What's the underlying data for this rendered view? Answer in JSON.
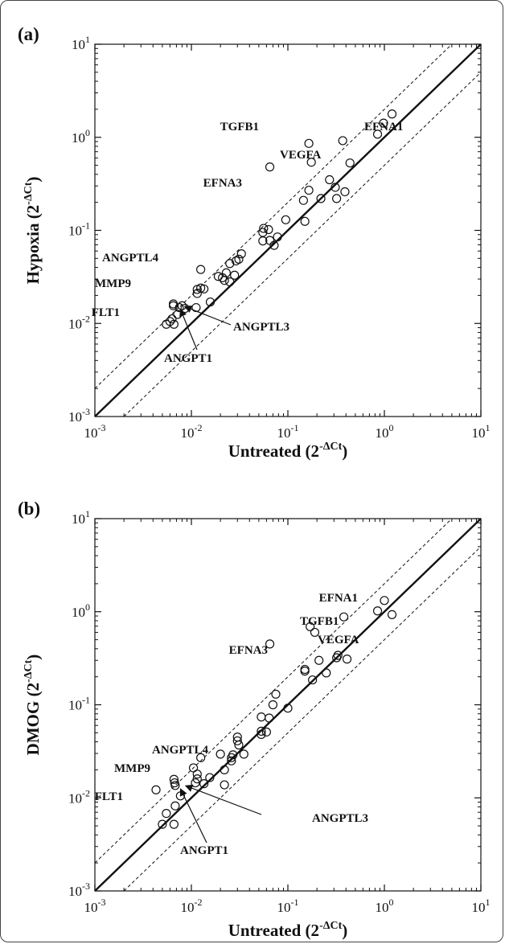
{
  "chart_data": [
    {
      "type": "scatter",
      "panel_label": "(a)",
      "xlabel": "Untreated (2",
      "xlabel_sup": "-ΔCt",
      "ylabel": "Hypoxia (2",
      "ylabel_sup": "-ΔCt",
      "xscale": "log",
      "yscale": "log",
      "xlim": [
        0.001,
        10
      ],
      "ylim": [
        0.001,
        10
      ],
      "tick_labels": [
        {
          "base": "10",
          "exp": "-3"
        },
        {
          "base": "10",
          "exp": "-2"
        },
        {
          "base": "10",
          "exp": "-1"
        },
        {
          "base": "10",
          "exp": "0"
        },
        {
          "base": "10",
          "exp": "1"
        }
      ],
      "reference_lines": {
        "identity": 1,
        "fold_bounds": [
          2,
          0.5
        ]
      },
      "points": [
        [
          0.0055,
          0.0098
        ],
        [
          0.006,
          0.0105
        ],
        [
          0.0066,
          0.0098
        ],
        [
          0.0063,
          0.0112
        ],
        [
          0.0065,
          0.0155
        ],
        [
          0.0072,
          0.0125
        ],
        [
          0.0075,
          0.0148
        ],
        [
          0.008,
          0.0155
        ],
        [
          0.0086,
          0.0145
        ],
        [
          0.0065,
          0.0162
        ],
        [
          0.0112,
          0.0148
        ],
        [
          0.0115,
          0.021
        ],
        [
          0.0125,
          0.024
        ],
        [
          0.0135,
          0.0235
        ],
        [
          0.0157,
          0.017
        ],
        [
          0.0115,
          0.0232
        ],
        [
          0.0125,
          0.038
        ],
        [
          0.019,
          0.032
        ],
        [
          0.021,
          0.031
        ],
        [
          0.023,
          0.035
        ],
        [
          0.025,
          0.028
        ],
        [
          0.025,
          0.044
        ],
        [
          0.028,
          0.033
        ],
        [
          0.029,
          0.047
        ],
        [
          0.031,
          0.049
        ],
        [
          0.033,
          0.056
        ],
        [
          0.022,
          0.029
        ],
        [
          0.055,
          0.077
        ],
        [
          0.055,
          0.095
        ],
        [
          0.056,
          0.105
        ],
        [
          0.063,
          0.102
        ],
        [
          0.065,
          0.078
        ],
        [
          0.072,
          0.069
        ],
        [
          0.078,
          0.085
        ],
        [
          0.095,
          0.13
        ],
        [
          0.145,
          0.21
        ],
        [
          0.15,
          0.125
        ],
        [
          0.165,
          0.27
        ],
        [
          0.22,
          0.22
        ],
        [
          0.27,
          0.35
        ],
        [
          0.31,
          0.29
        ],
        [
          0.32,
          0.22
        ],
        [
          0.39,
          0.26
        ],
        [
          0.44,
          0.53
        ],
        [
          0.85,
          1.08
        ],
        [
          0.98,
          1.42
        ],
        [
          1.2,
          1.78
        ],
        [
          0.37,
          0.92
        ],
        [
          0.165,
          0.86
        ],
        [
          0.175,
          0.54
        ],
        [
          0.065,
          0.48
        ]
      ],
      "annotations": [
        {
          "text": "TGFB1"
        },
        {
          "text": "EFNA1"
        },
        {
          "text": "VEGFA"
        },
        {
          "text": "EFNA3"
        },
        {
          "text": "ANGPTL4"
        },
        {
          "text": "MMP9"
        },
        {
          "text": "FLT1"
        },
        {
          "text": "ANGPTL3",
          "arrow_to": [
            0.0085,
            0.0152
          ]
        },
        {
          "text": "ANGPT1",
          "arrow_to": [
            0.0077,
            0.0142
          ]
        }
      ]
    },
    {
      "type": "scatter",
      "panel_label": "(b)",
      "xlabel": "Untreated (2",
      "xlabel_sup": "-ΔCt",
      "ylabel": "DMOG (2",
      "ylabel_sup": "-ΔCt",
      "xscale": "log",
      "yscale": "log",
      "xlim": [
        0.001,
        10
      ],
      "ylim": [
        0.001,
        10
      ],
      "tick_labels": [
        {
          "base": "10",
          "exp": "-3"
        },
        {
          "base": "10",
          "exp": "-2"
        },
        {
          "base": "10",
          "exp": "-1"
        },
        {
          "base": "10",
          "exp": "0"
        },
        {
          "base": "10",
          "exp": "1"
        }
      ],
      "reference_lines": {
        "identity": 1,
        "fold_bounds": [
          2,
          0.5
        ]
      },
      "points": [
        [
          0.0043,
          0.0122
        ],
        [
          0.005,
          0.0052
        ],
        [
          0.0055,
          0.0068
        ],
        [
          0.0066,
          0.0052
        ],
        [
          0.0068,
          0.0082
        ],
        [
          0.0066,
          0.0158
        ],
        [
          0.0067,
          0.0145
        ],
        [
          0.0068,
          0.0136
        ],
        [
          0.0077,
          0.0105
        ],
        [
          0.0105,
          0.021
        ],
        [
          0.011,
          0.0145
        ],
        [
          0.0115,
          0.016
        ],
        [
          0.0115,
          0.018
        ],
        [
          0.0125,
          0.027
        ],
        [
          0.0135,
          0.0142
        ],
        [
          0.0155,
          0.0165
        ],
        [
          0.02,
          0.0295
        ],
        [
          0.022,
          0.02
        ],
        [
          0.022,
          0.0138
        ],
        [
          0.026,
          0.027
        ],
        [
          0.026,
          0.025
        ],
        [
          0.027,
          0.029
        ],
        [
          0.03,
          0.041
        ],
        [
          0.03,
          0.045
        ],
        [
          0.031,
          0.037
        ],
        [
          0.035,
          0.0295
        ],
        [
          0.053,
          0.048
        ],
        [
          0.053,
          0.052
        ],
        [
          0.053,
          0.074
        ],
        [
          0.06,
          0.051
        ],
        [
          0.064,
          0.072
        ],
        [
          0.07,
          0.1
        ],
        [
          0.075,
          0.13
        ],
        [
          0.1,
          0.092
        ],
        [
          0.15,
          0.24
        ],
        [
          0.15,
          0.23
        ],
        [
          0.18,
          0.185
        ],
        [
          0.21,
          0.3
        ],
        [
          0.25,
          0.22
        ],
        [
          0.32,
          0.32
        ],
        [
          0.33,
          0.34
        ],
        [
          0.41,
          0.31
        ],
        [
          0.85,
          1.02
        ],
        [
          1.0,
          1.32
        ],
        [
          1.2,
          0.93
        ],
        [
          0.38,
          0.88
        ],
        [
          0.17,
          0.69
        ],
        [
          0.19,
          0.6
        ],
        [
          0.065,
          0.45
        ]
      ],
      "annotations": [
        {
          "text": "EFNA1"
        },
        {
          "text": "TGFB1"
        },
        {
          "text": "VEGFA"
        },
        {
          "text": "EFNA3"
        },
        {
          "text": "ANGPTL4"
        },
        {
          "text": "MMP9"
        },
        {
          "text": "FLT1"
        },
        {
          "text": "ANGPTL3",
          "arrow_to": [
            0.0087,
            0.0135
          ]
        },
        {
          "text": "ANGPT1",
          "arrow_to": [
            0.0077,
            0.0125
          ]
        }
      ]
    }
  ]
}
